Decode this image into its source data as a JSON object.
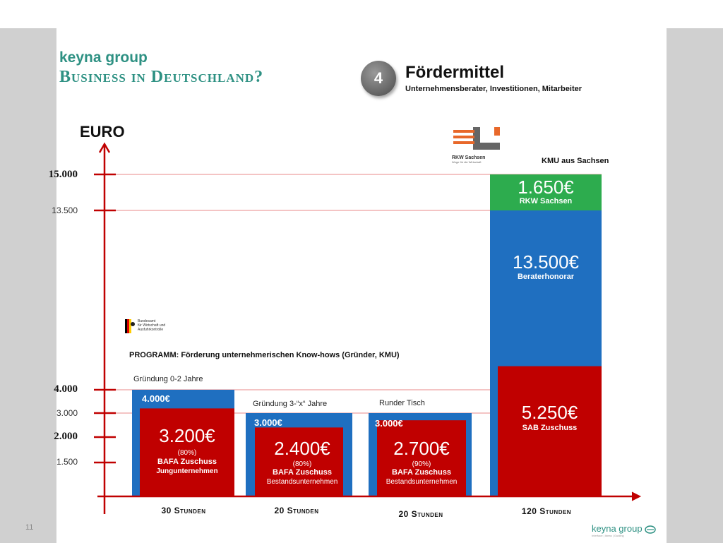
{
  "header": {
    "brand": "keyna group",
    "headline": "Business in Deutschland?",
    "step_number": "4",
    "section_title": "Fördermittel",
    "section_subtitle": "Unternehmensberater, Investitionen, Mitarbeiter"
  },
  "logos": {
    "rkw_line1": "RKW Sachsen",
    "rkw_line2": "Wege für die Wirtschaft",
    "bafa_line1": "Bundesamt",
    "bafa_line2": "für Wirtschaft und",
    "bafa_line3": "Ausfuhrkontrolle"
  },
  "annotations": {
    "kmu": "KMU aus Sachsen",
    "program": "PROGRAMM: Förderung unternehmerischen Know-hows (Gründer, KMU)",
    "cat1_top": "Gründung 0-2 Jahre",
    "cat2_top": "Gründung 3-“x“ Jahre",
    "cat3_top": "Runder Tisch"
  },
  "footer": {
    "page_number": "11",
    "brand": "keyna group",
    "tagline": "Interface | Ideas | Guiding"
  },
  "colors": {
    "blue": "#1f6fc0",
    "red": "#c00000",
    "green": "#2dac4e",
    "axis": "#c00000",
    "accent": "#2e9183"
  },
  "chart_data": {
    "type": "bar",
    "ylabel": "EURO",
    "ylim": [
      0,
      15000
    ],
    "y_ticks": [
      {
        "label": "15.000",
        "value": 15000,
        "bold": true
      },
      {
        "label": "13.500",
        "value": 13500,
        "bold": false
      },
      {
        "label": "4.000",
        "value": 4000,
        "bold": true
      },
      {
        "label": "3.000",
        "value": 3000,
        "bold": false
      },
      {
        "label": "2.000",
        "value": 2000,
        "bold": true
      },
      {
        "label": "1.500",
        "value": 1500,
        "bold": false
      }
    ],
    "categories": [
      "30 Stunden",
      "20 Stunden",
      "20 Stunden",
      "120 Stunden"
    ],
    "series": [
      {
        "name": "Beraterhonorar",
        "values": [
          4000,
          3000,
          3000,
          13500
        ],
        "labels": [
          "4.000€",
          "3.000€",
          "3.000€",
          "13.500€"
        ],
        "sublabels": [
          "",
          "",
          "",
          "Beraterhonorar"
        ]
      },
      {
        "name": "Zuschuss",
        "values": [
          3200,
          2400,
          2700,
          5250
        ],
        "labels": [
          "3.200€",
          "2.400€",
          "2.700€",
          "5.250€"
        ],
        "percent": [
          "(80%)",
          "(80%)",
          "(90%)",
          ""
        ],
        "bafa": [
          "BAFA Zuschuss",
          "BAFA Zuschuss",
          "BAFA Zuschuss",
          "SAB Zuschuss"
        ],
        "kind": [
          "Jungunternehmen",
          "Bestandsunternehmen",
          "Bestandsunternehmen",
          ""
        ]
      },
      {
        "name": "RKW Sachsen",
        "values": [
          0,
          0,
          0,
          1650
        ],
        "labels": [
          "",
          "",
          "",
          "1.650€"
        ],
        "sublabels": [
          "",
          "",
          "",
          "RKW Sachsen"
        ]
      }
    ]
  }
}
